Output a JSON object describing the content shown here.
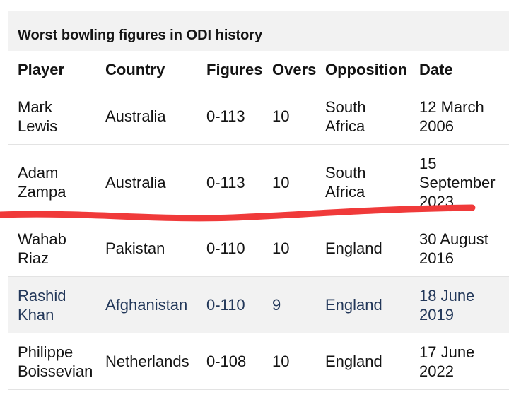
{
  "table": {
    "title": "Worst bowling figures in ODI history",
    "header": [
      "Player",
      "Country",
      "Figures",
      "Overs",
      "Opposition",
      "Date"
    ],
    "rows": [
      [
        "Mark Lewis",
        "Australia",
        "0-113",
        "10",
        "South Africa",
        "12 March 2006"
      ],
      [
        "Adam Zampa",
        "Australia",
        "0-113",
        "10",
        "South Africa",
        "15 September 2023"
      ],
      [
        "Wahab Riaz",
        "Pakistan",
        "0-110",
        "10",
        "England",
        "30 August 2016"
      ],
      [
        "Rashid Khan",
        "Afghanistan",
        "0-110",
        "9",
        "England",
        "18 June 2019"
      ],
      [
        "Philippe Boissevian",
        "Netherlands",
        "0-108",
        "10",
        "England",
        "17 June 2022"
      ]
    ]
  }
}
